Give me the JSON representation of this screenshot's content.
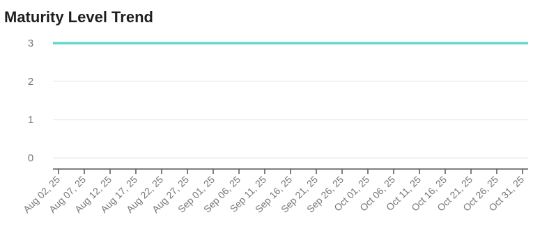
{
  "chart_data": {
    "type": "line",
    "title": "Maturity Level Trend",
    "xlabel": "",
    "ylabel": "",
    "ylim": [
      0,
      3
    ],
    "yticks": [
      0,
      1,
      2,
      3
    ],
    "grid": true,
    "x": [
      "Aug 02, 25",
      "Aug 07, 25",
      "Aug 12, 25",
      "Aug 17, 25",
      "Aug 22, 25",
      "Aug 27, 25",
      "Sep 01, 25",
      "Sep 06, 25",
      "Sep 11, 25",
      "Sep 16, 25",
      "Sep 21, 25",
      "Sep 26, 25",
      "Oct 01, 25",
      "Oct 06, 25",
      "Oct 11, 25",
      "Oct 16, 25",
      "Oct 21, 25",
      "Oct 26, 25",
      "Oct 31, 25"
    ],
    "series": [
      {
        "color": "#5fd8c8",
        "values": [
          3,
          3,
          3,
          3,
          3,
          3,
          3,
          3,
          3,
          3,
          3,
          3,
          3,
          3,
          3,
          3,
          3,
          3,
          3
        ]
      }
    ]
  }
}
